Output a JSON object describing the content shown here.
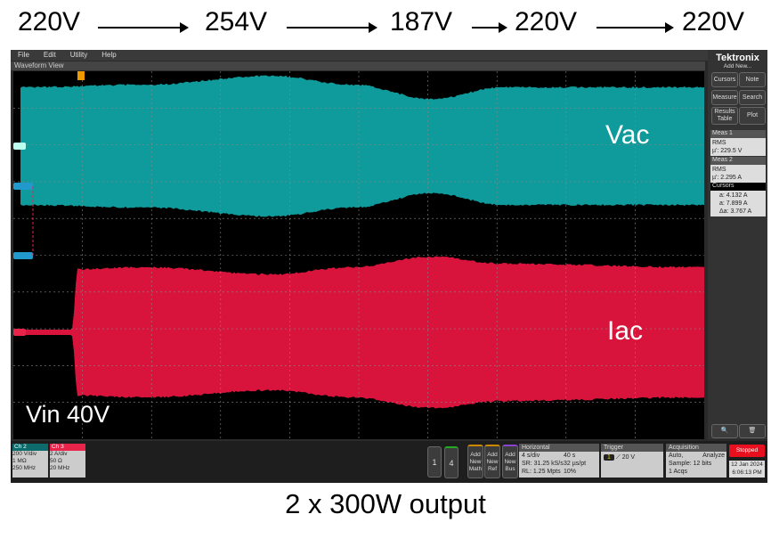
{
  "sequence": [
    "220V",
    "254V",
    "187V",
    "220V",
    "220V"
  ],
  "caption": "2 x 300W output",
  "menu": [
    "File",
    "Edit",
    "Utility",
    "Help"
  ],
  "view_title": "Waveform View",
  "labels": {
    "vac": "Vac",
    "iac": "Iac",
    "vin": "Vin 40V"
  },
  "side": {
    "brand": "Tektronix",
    "add_new": "Add New...",
    "buttons": [
      "Cursors",
      "Note",
      "Measure",
      "Search",
      "Results Table",
      "Plot"
    ],
    "meas1": {
      "title": "Meas 1",
      "type": "RMS",
      "value": "µ': 229.5 V"
    },
    "meas2": {
      "title": "Meas 2",
      "type": "RMS",
      "value": "µ': 2.295 A"
    },
    "cursors": {
      "title": "Cursors",
      "a": "a: 4.132 A",
      "b": "a: 7.899 A",
      "delta": "Δa: 3.767 A"
    }
  },
  "channels": [
    {
      "name": "Ch 2",
      "lines": [
        "200 V/div",
        "1 MΩ",
        "250 MHz"
      ],
      "color": "#0e6b6b"
    },
    {
      "name": "Ch 3",
      "lines": [
        "2 A/div",
        "50 Ω",
        "20 MHz"
      ],
      "color": "#e8244a"
    }
  ],
  "ch_buttons": [
    "1",
    "4"
  ],
  "add_buttons": [
    "Add New Math",
    "Add New Ref",
    "Add New Bus"
  ],
  "horizontal": {
    "title": "Horizontal",
    "l": [
      "4 s/div",
      "SR: 31.25 kS/s",
      "RL: 1.25 Mpts"
    ],
    "r": [
      "40 s",
      "32 µs/pt",
      "10%"
    ]
  },
  "trigger": {
    "title": "Trigger",
    "source": "1",
    "level": "20 V"
  },
  "acquisition": {
    "title": "Acquisition",
    "l": [
      "Auto,",
      "Sample: 12 bits",
      "1 Acqs"
    ],
    "mode": "Analyze"
  },
  "status": "Stopped",
  "date": "12 Jan 2024",
  "time": "6:06:13 PM",
  "colors": {
    "ch2": "#0f9b9b",
    "ch3": "#d8143c"
  }
}
